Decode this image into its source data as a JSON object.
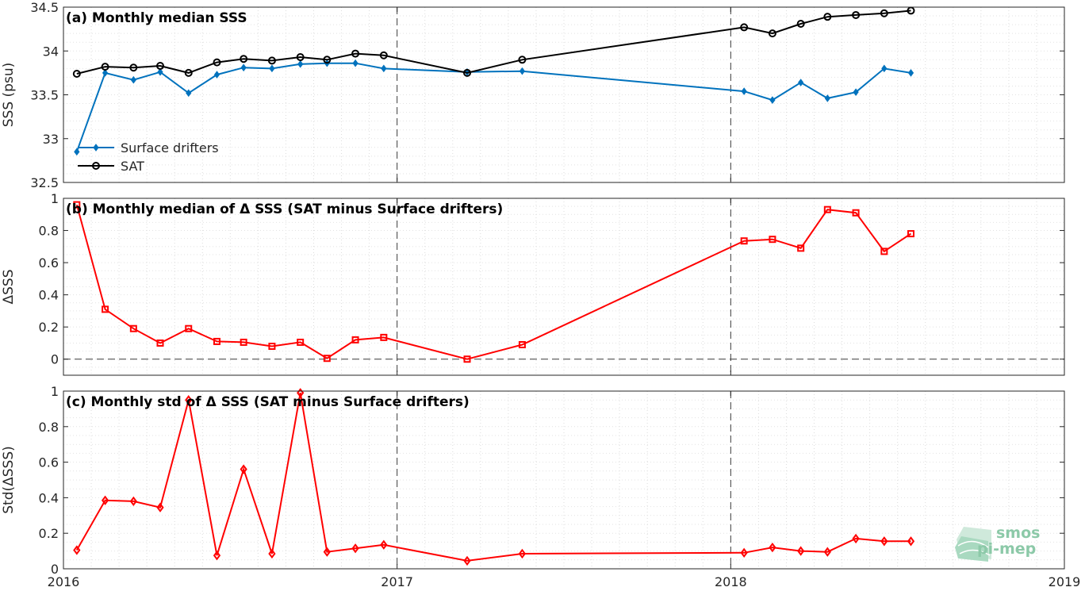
{
  "chart_data": [
    {
      "type": "line",
      "title": "(a) Monthly median SSS",
      "ylabel": "SSS (psu)",
      "ylim": [
        32.5,
        34.5
      ],
      "yticks": [
        "32.5",
        "33",
        "33.5",
        "34",
        "34.5"
      ],
      "xlim": [
        2016,
        2019
      ],
      "xticks": [
        "2016",
        "2017",
        "2018",
        "2019"
      ],
      "grid": true,
      "legend_position": "bottom-left",
      "series": [
        {
          "name": "Surface drifters",
          "color": "#0072bd",
          "marker": "diamond",
          "x": [
            2016.04,
            2016.125,
            2016.21,
            2016.29,
            2016.375,
            2016.46,
            2016.54,
            2016.625,
            2016.71,
            2016.79,
            2016.875,
            2016.96,
            2017.21,
            2017.375,
            2018.04,
            2018.125,
            2018.21,
            2018.29,
            2018.375,
            2018.46,
            2018.54
          ],
          "values": [
            32.85,
            33.75,
            33.67,
            33.76,
            33.52,
            33.73,
            33.81,
            33.8,
            33.85,
            33.86,
            33.86,
            33.8,
            33.76,
            33.77,
            33.54,
            33.44,
            33.64,
            33.46,
            33.53,
            33.8,
            33.75
          ]
        },
        {
          "name": "SAT",
          "color": "#000000",
          "marker": "circle",
          "x": [
            2016.04,
            2016.125,
            2016.21,
            2016.29,
            2016.375,
            2016.46,
            2016.54,
            2016.625,
            2016.71,
            2016.79,
            2016.875,
            2016.96,
            2017.21,
            2017.375,
            2018.04,
            2018.125,
            2018.21,
            2018.29,
            2018.375,
            2018.46,
            2018.54
          ],
          "values": [
            33.74,
            33.82,
            33.81,
            33.83,
            33.75,
            33.87,
            33.91,
            33.89,
            33.93,
            33.9,
            33.97,
            33.95,
            33.75,
            33.9,
            34.27,
            34.2,
            34.31,
            34.39,
            34.41,
            34.43,
            34.46
          ]
        }
      ]
    },
    {
      "type": "line",
      "title": "(b) Monthly median of Δ SSS (SAT minus Surface drifters)",
      "ylabel": "ΔSSS",
      "ylim": [
        -0.1,
        1
      ],
      "yticks": [
        "0",
        "0.2",
        "0.4",
        "0.6",
        "0.8",
        "1"
      ],
      "xlim": [
        2016,
        2019
      ],
      "grid": true,
      "series": [
        {
          "color": "#ff0000",
          "marker": "square",
          "x": [
            2016.04,
            2016.125,
            2016.21,
            2016.29,
            2016.375,
            2016.46,
            2016.54,
            2016.625,
            2016.71,
            2016.79,
            2016.875,
            2016.96,
            2017.21,
            2017.375,
            2018.04,
            2018.125,
            2018.21,
            2018.29,
            2018.375,
            2018.46,
            2018.54
          ],
          "values": [
            0.96,
            0.31,
            0.19,
            0.1,
            0.19,
            0.11,
            0.105,
            0.08,
            0.105,
            0.005,
            0.12,
            0.135,
            0.0,
            0.09,
            0.735,
            0.745,
            0.69,
            0.93,
            0.91,
            0.67,
            0.78
          ]
        }
      ]
    },
    {
      "type": "line",
      "title": "(c) Monthly std of Δ SSS (SAT minus Surface drifters)",
      "ylabel": "Std(ΔSSS)",
      "ylim": [
        0,
        1
      ],
      "yticks": [
        "0",
        "0.2",
        "0.4",
        "0.6",
        "0.8",
        "1"
      ],
      "xlim": [
        2016,
        2019
      ],
      "xticks": [
        "2016",
        "2017",
        "2018",
        "2019"
      ],
      "grid": true,
      "series": [
        {
          "color": "#ff0000",
          "marker": "diamond",
          "x": [
            2016.04,
            2016.125,
            2016.21,
            2016.29,
            2016.375,
            2016.46,
            2016.54,
            2016.625,
            2016.71,
            2016.79,
            2016.875,
            2016.96,
            2017.21,
            2017.375,
            2018.04,
            2018.125,
            2018.21,
            2018.29,
            2018.375,
            2018.46,
            2018.54
          ],
          "values": [
            0.105,
            0.385,
            0.38,
            0.345,
            0.95,
            0.075,
            0.56,
            0.085,
            0.99,
            0.095,
            0.115,
            0.135,
            0.045,
            0.085,
            0.09,
            0.12,
            0.1,
            0.095,
            0.17,
            0.155,
            0.155
          ]
        }
      ]
    }
  ],
  "logo": {
    "line1": "smos",
    "line2": "pi-mep"
  }
}
